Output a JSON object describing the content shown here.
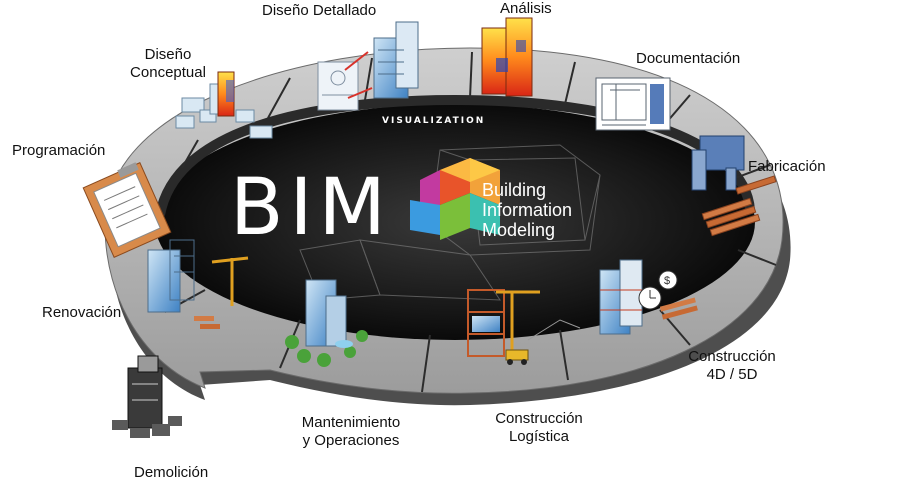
{
  "center": {
    "acronym": "BIM",
    "line1": "Building",
    "line2": "Information",
    "line3": "Modeling",
    "ring_caption": "VISUALIZATION"
  },
  "stages": {
    "diseno_detallado": "Diseño Detallado",
    "analisis": "Análisis",
    "documentacion": "Documentación",
    "fabricacion": "Fabricación",
    "construccion_4d5d_line1": "Construcción",
    "construccion_4d5d_line2": "4D / 5D",
    "construccion_logistica_line1": "Construcción",
    "construccion_logistica_line2": "Logística",
    "mantenimiento_line1": "Mantenimiento",
    "mantenimiento_line2": "y Operaciones",
    "demolicion": "Demolición",
    "renovacion": "Renovación",
    "programacion": "Programación",
    "diseno_conceptual_line1": "Diseño",
    "diseno_conceptual_line2": "Conceptual"
  },
  "colors": {
    "ring_top": "#b7b7b7",
    "ring_side": "#5a5a5a",
    "center": "#1b1b1b",
    "cube_accent": "#e8542a"
  }
}
